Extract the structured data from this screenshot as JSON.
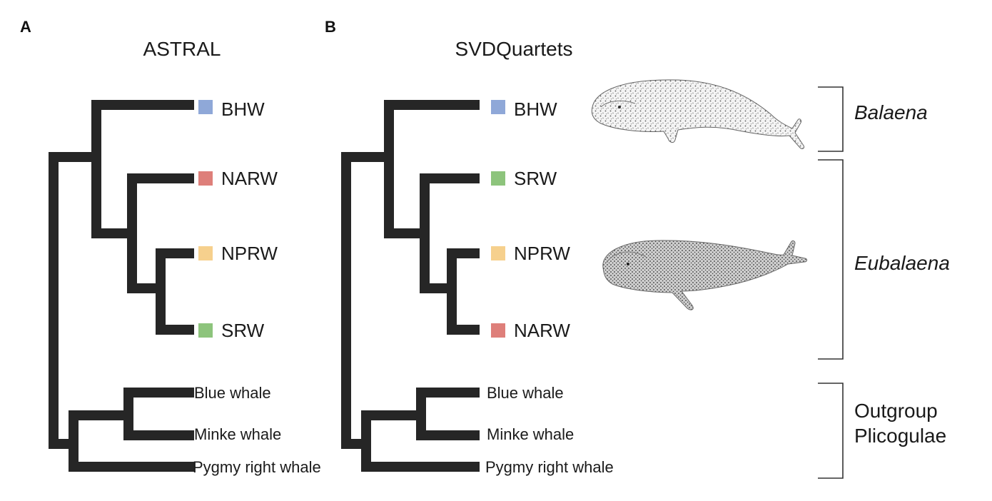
{
  "panels": [
    {
      "letter": "A",
      "title": "ASTRAL",
      "tips": [
        {
          "label": "BHW",
          "swatch": "#8fa8d8"
        },
        {
          "label": "NARW",
          "swatch": "#de7f7a"
        },
        {
          "label": "NPRW",
          "swatch": "#f6d08d"
        },
        {
          "label": "SRW",
          "swatch": "#8dc47c"
        },
        {
          "label": "Blue whale"
        },
        {
          "label": "Minke whale"
        },
        {
          "label": "Pygmy right whale"
        }
      ]
    },
    {
      "letter": "B",
      "title": "SVDQuartets",
      "tips": [
        {
          "label": "BHW",
          "swatch": "#8fa8d8"
        },
        {
          "label": "SRW",
          "swatch": "#8dc47c"
        },
        {
          "label": "NPRW",
          "swatch": "#f6d08d"
        },
        {
          "label": "NARW",
          "swatch": "#de7f7a"
        },
        {
          "label": "Blue whale"
        },
        {
          "label": "Minke whale"
        },
        {
          "label": "Pygmy right whale"
        }
      ]
    }
  ],
  "clades": [
    {
      "label": "Balaena",
      "italic": true
    },
    {
      "label": "Eubalaena",
      "italic": true
    },
    {
      "label_line1": "Outgroup",
      "label_line2": "Plicogulae",
      "italic": false
    }
  ],
  "illustrations": [
    {
      "icon": "bowhead-whale-illustration"
    },
    {
      "icon": "right-whale-illustration"
    }
  ],
  "colors": {
    "branch": "#262626",
    "bhw": "#8fa8d8",
    "narw": "#de7f7a",
    "nprw": "#f6d08d",
    "srw": "#8dc47c"
  }
}
